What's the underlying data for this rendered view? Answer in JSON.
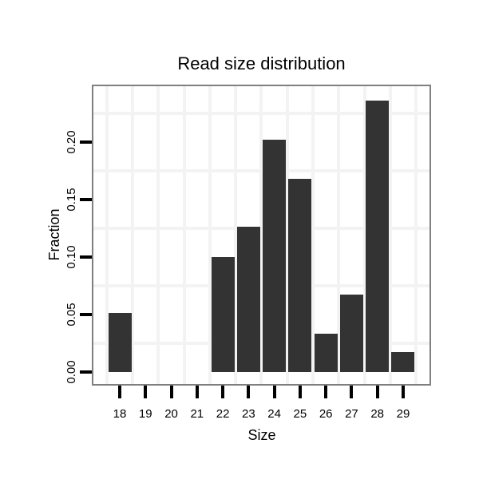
{
  "chart_data": {
    "type": "bar",
    "title": "Read size distribution",
    "xlabel": "Size",
    "ylabel": "Fraction",
    "categories": [
      "18",
      "19",
      "20",
      "21",
      "22",
      "23",
      "24",
      "25",
      "26",
      "27",
      "28",
      "29"
    ],
    "values": [
      0.051,
      0,
      0,
      0,
      0.1,
      0.126,
      0.202,
      0.168,
      0.033,
      0.067,
      0.236,
      0.017
    ],
    "y_ticks": [
      0,
      0.05,
      0.1,
      0.15,
      0.2
    ],
    "y_tick_labels": [
      "0.00",
      "0.05",
      "0.10",
      "0.15",
      "0.20"
    ],
    "y_minor_gridlines": [
      0.025,
      0.075,
      0.125,
      0.175,
      0.225
    ],
    "x_minor_gridlines_between_categories": true,
    "ylim": [
      0,
      0.248
    ],
    "grid": "minor-only",
    "legend": "none",
    "colors": {
      "bar": "#333333",
      "panel_border": "#7f7f7f",
      "gridline": "#f3f3f3",
      "tick": "#000000",
      "text": "#000000",
      "background": "#ffffff"
    }
  }
}
